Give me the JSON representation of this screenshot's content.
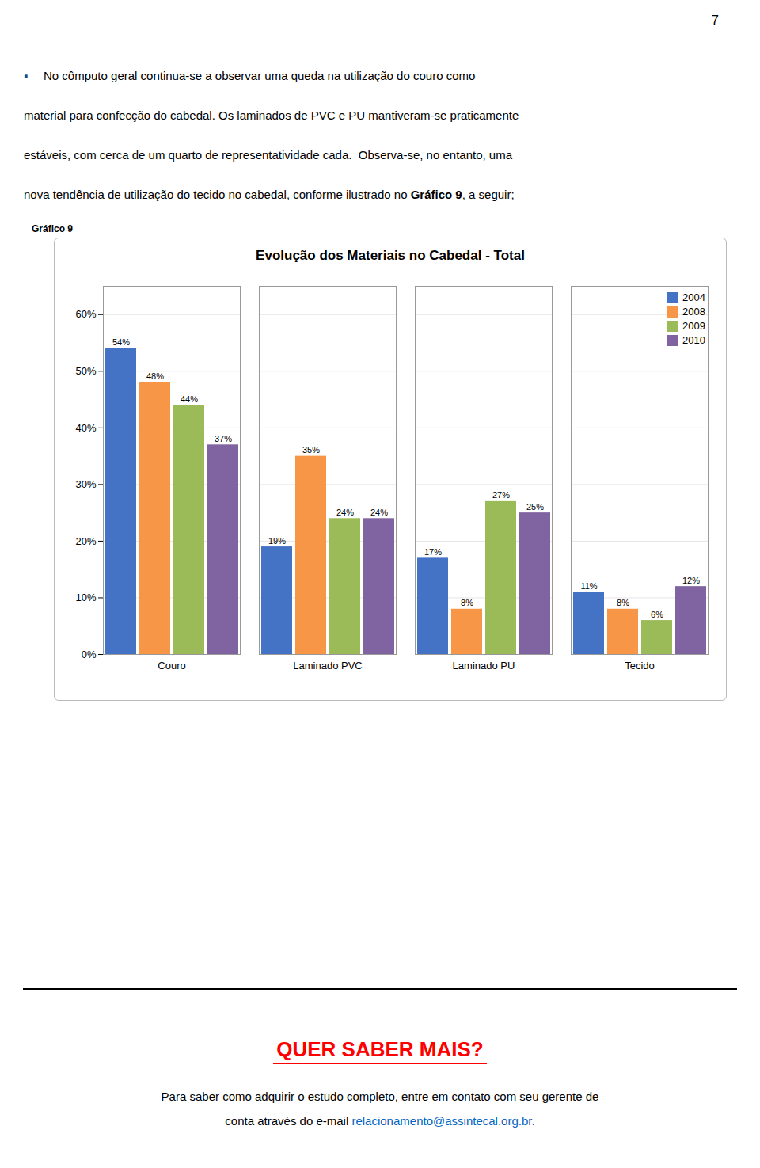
{
  "chart_data": {
    "type": "bar",
    "title": "Evolução dos Materiais no Cabedal - Total",
    "categories": [
      "Couro",
      "Laminado PVC",
      "Laminado PU",
      "Tecido"
    ],
    "series": [
      {
        "name": "2004",
        "color": "#4472C4",
        "values": [
          0.54,
          0.19,
          0.17,
          0.11
        ],
        "value_labels": [
          "54%",
          "19%",
          "17%",
          "11%"
        ]
      },
      {
        "name": "2008",
        "color": "#F79646",
        "values": [
          0.48,
          0.35,
          0.08,
          0.08
        ],
        "value_labels": [
          "48%",
          "35%",
          "8%",
          "8%"
        ]
      },
      {
        "name": "2009",
        "color": "#9BBB59",
        "values": [
          0.44,
          0.24,
          0.27,
          0.06
        ],
        "value_labels": [
          "44%",
          "24%",
          "27%",
          "6%"
        ]
      },
      {
        "name": "2010",
        "color": "#8064A2",
        "values": [
          0.37,
          0.24,
          0.25,
          0.12
        ],
        "value_labels": [
          "37%",
          "24%",
          "25%",
          "12%"
        ]
      }
    ],
    "ylim": [
      0,
      0.65
    ],
    "yticks": [
      {
        "value": 0.0,
        "label": "0%"
      },
      {
        "value": 0.1,
        "label": "10%"
      },
      {
        "value": 0.2,
        "label": "20%"
      },
      {
        "value": 0.3,
        "label": "30%"
      },
      {
        "value": 0.4,
        "label": "40%"
      },
      {
        "value": 0.5,
        "label": "50%"
      },
      {
        "value": 0.6,
        "label": "60%"
      }
    ],
    "grid": true,
    "legend": "upper right",
    "data_labels": true,
    "annotations": [
      "7",
      "▪",
      "No cômputo geral continua-se a observar uma queda na utilização do couro como",
      "material para confecção do cabedal. Os laminados de PVC e PU mantiveram-se praticamente",
      "estáveis, com cerca de um quarto de representatividade cada.  Observa-se, no entanto, uma",
      "nova tendência de utilização do tecido no cabedal, conforme ilustrado no ",
      "Gráfico 9",
      ", a seguir;",
      "Gráfico 9",
      "QUER SABER MAIS?",
      "Para saber como adquirir o estudo completo, entre em contato com seu gerente de",
      "conta através do e-mail ",
      "relacionamento@assintecal.org.br",
      "."
    ]
  }
}
